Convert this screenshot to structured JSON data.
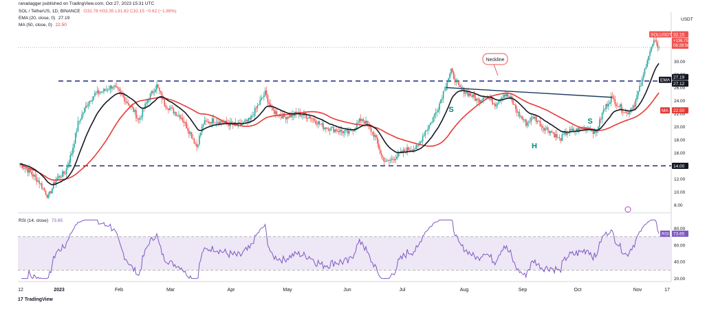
{
  "header": {
    "published": "ranadagger published on TradingView.com, Oct 27, 2023 15:31 UTC",
    "symbol": "SOL / TetherUS, 1D, BINANCE",
    "ohlc": "O32.78 H33.35 L31.82 C32.15 −0.62 (−1.89%)",
    "ema_label": "EMA (20, close, 0)",
    "ema_value": "27.19",
    "ma_label": "MA (50, close, 0)",
    "ma_value": "22.50",
    "rsi_label": "RSI (14, close)",
    "rsi_value": "73.65"
  },
  "footer": {
    "brand": "TradingView"
  },
  "colors": {
    "up": "#26a69a",
    "down": "#ef5350",
    "ema": "#131722",
    "ma": "#e53935",
    "rsi": "#7e57c2",
    "rsi_band": "#ede7f6",
    "dashed": "#1a237e",
    "neckline": "#1a3a5c",
    "annot": "#00897b",
    "price_tag": "#ef5350"
  },
  "chart_data": {
    "type": "candlestick",
    "price_axis": {
      "currency": "USDT",
      "ticks": [
        "8.00",
        "10.00",
        "12.00",
        "14.00",
        "16.00",
        "18.00",
        "20.00",
        "22.00",
        "24.00",
        "26.00",
        "28.00",
        "30.00"
      ],
      "ylim": [
        7.0,
        35.0
      ]
    },
    "time_axis": {
      "ticks": [
        "12",
        "2023",
        "Feb",
        "Mar",
        "Apr",
        "May",
        "Jun",
        "Jul",
        "Aug",
        "Sep",
        "Oct",
        "Nov",
        "17"
      ]
    },
    "levels": [
      {
        "value": 27.0,
        "style": "dashed"
      },
      {
        "value": 14.0,
        "style": "dashed",
        "label": "14.00"
      }
    ],
    "neckline": {
      "label": "Neckline",
      "from": 26.0,
      "to": 24.5
    },
    "annotations": [
      "S",
      "H",
      "S"
    ],
    "price_tags": [
      {
        "label": "SOLUSDT",
        "value": "32.15",
        "extra": [
          "+136.75%",
          "08:28:08"
        ],
        "color": "#ef5350"
      },
      {
        "label": "EMA",
        "value": "27.19",
        "color": "#131722"
      },
      {
        "label": "",
        "value": "27.12",
        "color": "#131722"
      },
      {
        "label": "MA",
        "value": "22.50",
        "color": "#e53935"
      },
      {
        "label": "",
        "value": "14.00",
        "color": "#131722"
      }
    ],
    "close_anchors": [
      [
        0,
        14.3
      ],
      [
        8,
        13.0
      ],
      [
        15,
        11.5
      ],
      [
        22,
        9.2
      ],
      [
        28,
        12.0
      ],
      [
        35,
        13.0
      ],
      [
        40,
        16.0
      ],
      [
        45,
        20.5
      ],
      [
        52,
        23.5
      ],
      [
        58,
        25.0
      ],
      [
        65,
        25.5
      ],
      [
        72,
        26.3
      ],
      [
        80,
        24.5
      ],
      [
        88,
        22.5
      ],
      [
        92,
        21.0
      ],
      [
        100,
        24.5
      ],
      [
        106,
        26.3
      ],
      [
        112,
        23.5
      ],
      [
        118,
        22.5
      ],
      [
        125,
        21.5
      ],
      [
        132,
        19.0
      ],
      [
        137,
        17.0
      ],
      [
        142,
        20.5
      ],
      [
        150,
        21.0
      ],
      [
        160,
        20.5
      ],
      [
        170,
        20.2
      ],
      [
        178,
        21.0
      ],
      [
        185,
        23.5
      ],
      [
        190,
        25.2
      ],
      [
        195,
        22.5
      ],
      [
        205,
        21.5
      ],
      [
        215,
        22.0
      ],
      [
        225,
        21.5
      ],
      [
        235,
        20.0
      ],
      [
        245,
        19.5
      ],
      [
        255,
        19.0
      ],
      [
        265,
        21.3
      ],
      [
        270,
        20.0
      ],
      [
        275,
        18.5
      ],
      [
        280,
        15.5
      ],
      [
        284,
        14.5
      ],
      [
        292,
        15.5
      ],
      [
        300,
        16.5
      ],
      [
        308,
        16.8
      ],
      [
        313,
        19.0
      ],
      [
        318,
        20.5
      ],
      [
        324,
        23.0
      ],
      [
        330,
        26.5
      ],
      [
        334,
        28.5
      ],
      [
        340,
        26.0
      ],
      [
        348,
        25.0
      ],
      [
        355,
        24.0
      ],
      [
        360,
        24.8
      ],
      [
        368,
        23.5
      ],
      [
        375,
        25.0
      ],
      [
        380,
        24.3
      ],
      [
        386,
        22.0
      ],
      [
        392,
        20.5
      ],
      [
        398,
        21.5
      ],
      [
        405,
        20.0
      ],
      [
        412,
        19.2
      ],
      [
        418,
        18.0
      ],
      [
        424,
        19.2
      ],
      [
        432,
        19.5
      ],
      [
        440,
        20.0
      ],
      [
        446,
        19.0
      ],
      [
        452,
        22.5
      ],
      [
        458,
        24.5
      ],
      [
        465,
        23.0
      ],
      [
        470,
        22.0
      ],
      [
        476,
        23.5
      ],
      [
        482,
        27.0
      ],
      [
        486,
        30.5
      ],
      [
        491,
        33.0
      ],
      [
        495,
        32.15
      ]
    ],
    "ema20": {
      "name": "EMA (20, close, 0)",
      "last": 27.19
    },
    "ma50": {
      "name": "MA (50, close, 0)",
      "last": 22.5
    },
    "rsi": {
      "name": "RSI (14, close)",
      "ticks": [
        "20.00",
        "40.00",
        "60.00",
        "80.00"
      ],
      "ylim": [
        18,
        92
      ],
      "band": [
        30,
        70
      ],
      "last": 73.65
    }
  }
}
